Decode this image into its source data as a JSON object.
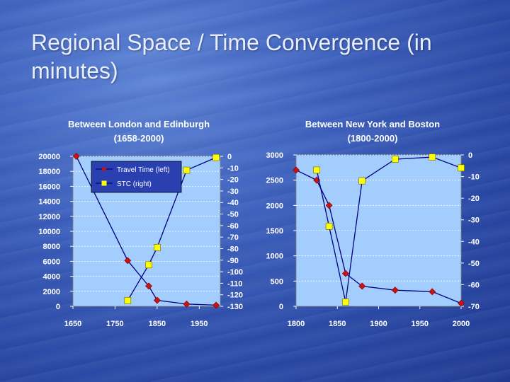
{
  "slide": {
    "title": "Regional Space / Time Convergence (in minutes)"
  },
  "colors": {
    "plot_bg": "#a3cdfc",
    "travel_series": "#cc1111",
    "stc_series": "#ffff00",
    "line": "#000080",
    "grid": "#ffffff"
  },
  "chart_data": [
    {
      "type": "line",
      "title": "Between London and Edinburgh",
      "subtitle": "(1658-2000)",
      "x_ticks": [
        1650,
        1750,
        1850,
        1950
      ],
      "x_range": [
        1650,
        2000
      ],
      "y_left_range": [
        0,
        20000
      ],
      "y_left_ticks": [
        0,
        2000,
        4000,
        6000,
        8000,
        10000,
        12000,
        14000,
        16000,
        18000,
        20000
      ],
      "y_right_range": [
        -130,
        0
      ],
      "y_right_ticks": [
        0,
        -10,
        -20,
        -30,
        -40,
        -50,
        -60,
        -70,
        -80,
        -90,
        -100,
        -110,
        -120,
        -130
      ],
      "legend": {
        "position": "top-left"
      },
      "series": [
        {
          "name": "Travel Time (left)",
          "axis": "left",
          "marker": "diamond",
          "x": [
            1658,
            1780,
            1830,
            1850,
            1920,
            1990
          ],
          "y": [
            20000,
            6100,
            2700,
            800,
            300,
            150
          ]
        },
        {
          "name": "STC (right)",
          "axis": "right",
          "marker": "square",
          "x": [
            1780,
            1830,
            1850,
            1920,
            1990
          ],
          "y": [
            -125,
            -94,
            -79,
            -12,
            -1
          ]
        }
      ]
    },
    {
      "type": "line",
      "title": "Between New York and Boston",
      "subtitle": "(1800-2000)",
      "x_ticks": [
        1800,
        1850,
        1900,
        1950,
        2000
      ],
      "x_range": [
        1800,
        2000
      ],
      "y_left_range": [
        0,
        3000
      ],
      "y_left_ticks": [
        0,
        500,
        1000,
        1500,
        2000,
        2500,
        3000
      ],
      "y_right_range": [
        -70,
        0
      ],
      "y_right_ticks": [
        0,
        -10,
        -20,
        -30,
        -40,
        -50,
        -60,
        -70
      ],
      "series": [
        {
          "name": "Travel Time (left)",
          "axis": "left",
          "marker": "diamond",
          "x": [
            1800,
            1825,
            1840,
            1860,
            1880,
            1920,
            1965,
            2000
          ],
          "y": [
            2700,
            2500,
            2000,
            650,
            400,
            320,
            290,
            60
          ]
        },
        {
          "name": "STC (right)",
          "axis": "right",
          "marker": "square",
          "x": [
            1825,
            1840,
            1860,
            1880,
            1920,
            1965,
            2000
          ],
          "y": [
            -7,
            -33,
            -68,
            -12,
            -2,
            -1,
            -6
          ]
        }
      ]
    }
  ]
}
